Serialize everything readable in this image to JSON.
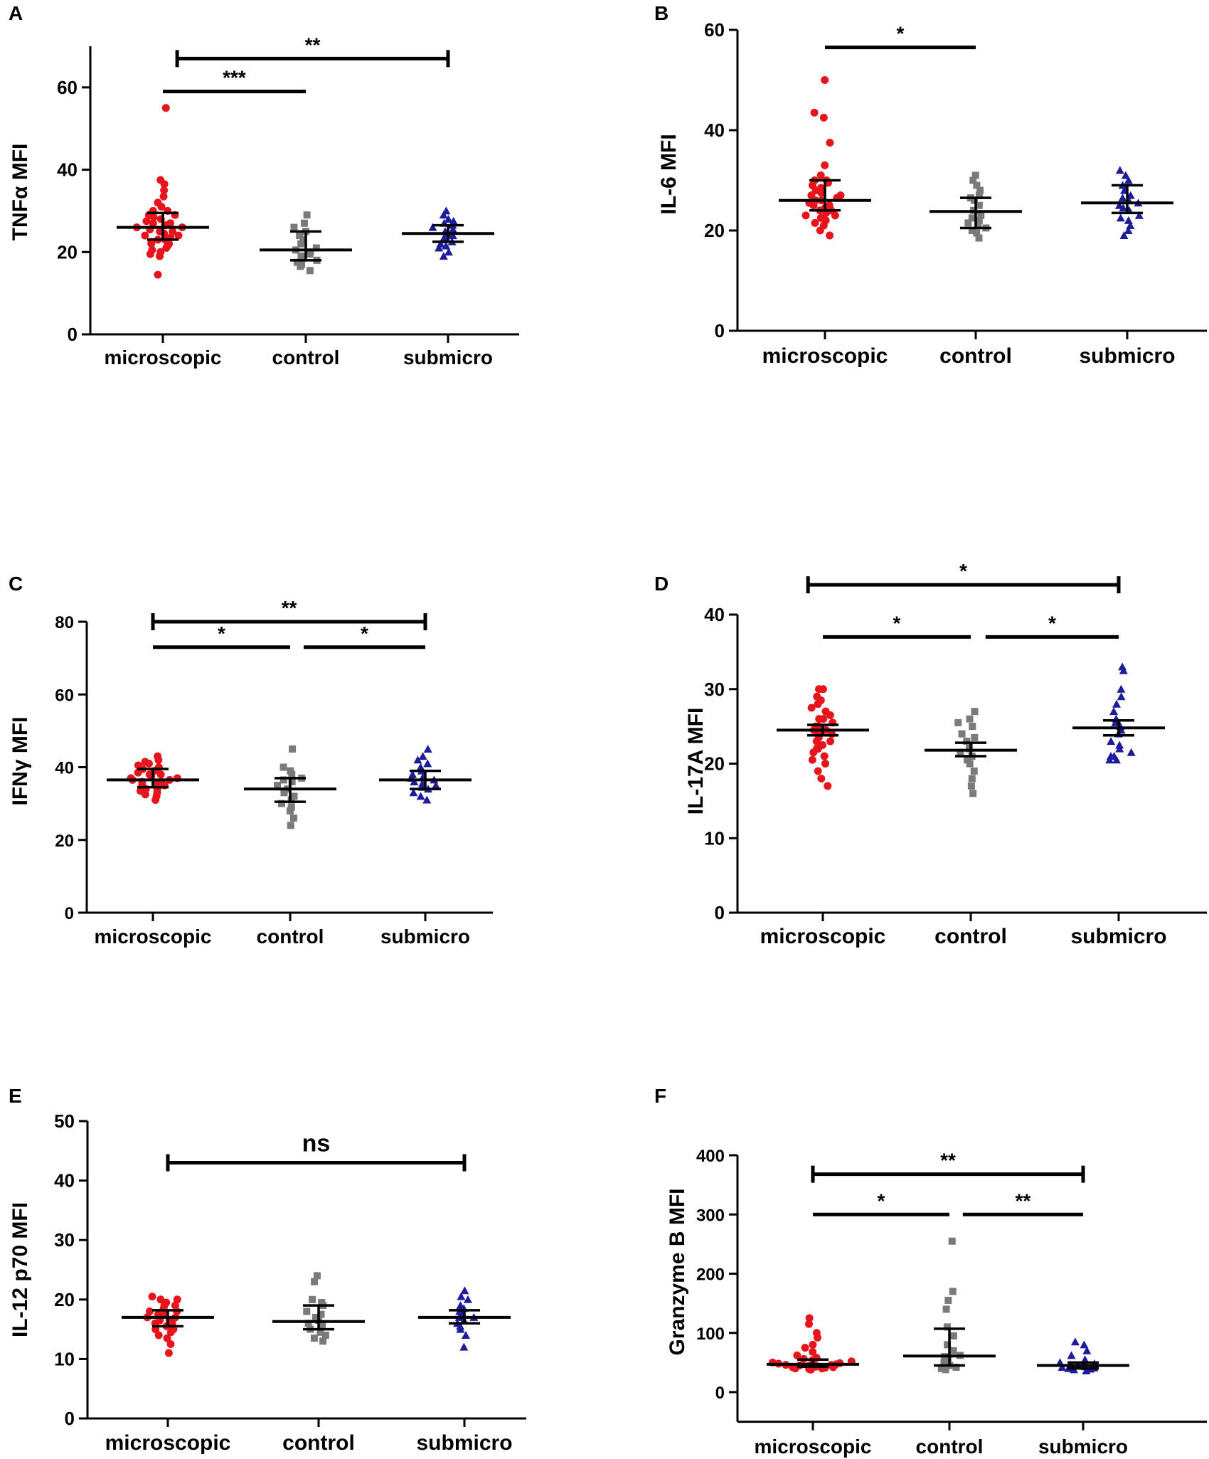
{
  "colors": {
    "microscopic": "#e8141c",
    "control": "#7a7a7a",
    "submicro": "#1c1c9c",
    "axis": "#000000"
  },
  "chart_data": [
    {
      "panel": "A",
      "type": "scatter",
      "ylabel": "TNFα MFI",
      "ylim": [
        0,
        70
      ],
      "yticks": [
        0,
        20,
        40,
        60
      ],
      "categories": [
        "microscopic",
        "control",
        "submicro"
      ],
      "series": [
        {
          "name": "microscopic",
          "marker": "circle",
          "median": 26,
          "q1": 23,
          "q3": 29.5,
          "values": [
            14.5,
            19,
            19.5,
            20,
            20.5,
            21,
            21.5,
            22,
            22,
            22.5,
            23,
            23,
            23.5,
            24,
            24,
            24.5,
            25,
            25,
            25.5,
            26,
            26,
            26.5,
            27,
            27,
            27.5,
            28,
            28.5,
            29,
            29,
            30,
            30,
            31,
            32,
            33.5,
            35,
            36.5,
            37.5,
            55
          ]
        },
        {
          "name": "control",
          "marker": "square",
          "median": 20.5,
          "q1": 18,
          "q3": 25,
          "values": [
            15.5,
            16.5,
            17,
            17.5,
            18,
            18.5,
            19,
            19.5,
            20,
            20.5,
            21,
            22,
            23,
            24,
            25,
            26,
            27,
            29
          ]
        },
        {
          "name": "submicro",
          "marker": "triangle",
          "median": 24.5,
          "q1": 22.5,
          "q3": 26.5,
          "values": [
            19,
            20,
            21,
            21.5,
            22,
            22.5,
            23,
            23.5,
            24,
            24.5,
            25,
            25.5,
            26,
            26.5,
            27,
            27.5,
            28,
            29,
            30
          ]
        }
      ],
      "significance": [
        {
          "from": 0,
          "to": 1,
          "label": "***",
          "y": 59,
          "caps": false
        },
        {
          "from": 0.1,
          "to": 2,
          "label": "**",
          "y": 67,
          "caps": true
        }
      ]
    },
    {
      "panel": "B",
      "type": "scatter",
      "ylabel": "IL-6 MFI",
      "ylim": [
        0,
        60
      ],
      "yticks": [
        0,
        20,
        40,
        60
      ],
      "categories": [
        "microscopic",
        "control",
        "submicro"
      ],
      "series": [
        {
          "name": "microscopic",
          "marker": "circle",
          "median": 26,
          "q1": 24,
          "q3": 30,
          "values": [
            19,
            20,
            21,
            21.5,
            22,
            22.5,
            23,
            23,
            23.5,
            24,
            24,
            24.5,
            25,
            25,
            25.5,
            26,
            26,
            26.5,
            27,
            27,
            27.5,
            28,
            28.5,
            29,
            29.5,
            30,
            30,
            31,
            33,
            37.5,
            42.5,
            43.5,
            50
          ]
        },
        {
          "name": "control",
          "marker": "square",
          "median": 23.8,
          "q1": 20.5,
          "q3": 26.5,
          "values": [
            18.5,
            19.5,
            20,
            20.5,
            21,
            21.5,
            22,
            22.5,
            23,
            24,
            25,
            26,
            26.5,
            27,
            28,
            29,
            30,
            31
          ]
        },
        {
          "name": "submicro",
          "marker": "triangle",
          "median": 25.5,
          "q1": 23.5,
          "q3": 29,
          "values": [
            19,
            20,
            21,
            22,
            22.5,
            23,
            24,
            24.5,
            25,
            25.5,
            26,
            26.5,
            27,
            28,
            29,
            30,
            31,
            32
          ]
        }
      ],
      "significance": [
        {
          "from": 0,
          "to": 1,
          "label": "*",
          "y": 56.5,
          "caps": false
        }
      ]
    },
    {
      "panel": "C",
      "type": "scatter",
      "ylabel": "IFNγ MFI",
      "ylim": [
        0,
        80
      ],
      "yticks": [
        0,
        20,
        40,
        60,
        80
      ],
      "categories": [
        "microscopic",
        "control",
        "submicro"
      ],
      "series": [
        {
          "name": "microscopic",
          "marker": "circle",
          "median": 36.5,
          "q1": 34.5,
          "q3": 39.5,
          "values": [
            31,
            32,
            32.5,
            33,
            33.5,
            34,
            34,
            34.5,
            35,
            35,
            35.5,
            36,
            36,
            36.5,
            36.5,
            37,
            37,
            37.5,
            38,
            38,
            38.5,
            39,
            39.5,
            40,
            40.5,
            41,
            41.5,
            42,
            43
          ]
        },
        {
          "name": "control",
          "marker": "square",
          "median": 34,
          "q1": 30.5,
          "q3": 37,
          "values": [
            24,
            26,
            28,
            29,
            30,
            31,
            32,
            33,
            34,
            35,
            36,
            36.5,
            37,
            38,
            39,
            40,
            45
          ]
        },
        {
          "name": "submicro",
          "marker": "triangle",
          "median": 36.5,
          "q1": 34,
          "q3": 39,
          "values": [
            31,
            32,
            33,
            34,
            34.5,
            35,
            35.5,
            36,
            36.5,
            37,
            37.5,
            38,
            39,
            40,
            41,
            42,
            43,
            45
          ]
        }
      ],
      "significance": [
        {
          "from": 0,
          "to": 1,
          "label": "*",
          "y": 73,
          "caps": false
        },
        {
          "from": 1.1,
          "to": 2,
          "label": "*",
          "y": 73,
          "caps": false
        },
        {
          "from": 0,
          "to": 2,
          "label": "**",
          "y": 80,
          "caps": true
        }
      ]
    },
    {
      "panel": "D",
      "type": "scatter",
      "ylabel": "IL-17A MFI",
      "ylim": [
        0,
        40
      ],
      "yticks": [
        0,
        10,
        20,
        30,
        40
      ],
      "categories": [
        "microscopic",
        "control",
        "submicro"
      ],
      "series": [
        {
          "name": "microscopic",
          "marker": "circle",
          "median": 24.5,
          "q1": 23.8,
          "q3": 25.2,
          "values": [
            17,
            18,
            19,
            20,
            20.5,
            21,
            21.5,
            22,
            22,
            22.5,
            23,
            23,
            23.5,
            24,
            24,
            24.5,
            24.5,
            25,
            25,
            25.5,
            26,
            26,
            26.5,
            27,
            27.5,
            28,
            28.5,
            29,
            30,
            30
          ]
        },
        {
          "name": "control",
          "marker": "square",
          "median": 21.8,
          "q1": 21,
          "q3": 22.8,
          "values": [
            16,
            17,
            18,
            19,
            20,
            20.5,
            21,
            21.5,
            22,
            22.5,
            23,
            23.5,
            24,
            25,
            25.5,
            26,
            27
          ]
        },
        {
          "name": "submicro",
          "marker": "triangle",
          "median": 24.8,
          "q1": 23.8,
          "q3": 25.8,
          "values": [
            20.5,
            20.5,
            21,
            21,
            21.5,
            22,
            22.5,
            23,
            24,
            24.5,
            25,
            25.5,
            26,
            27,
            28,
            29,
            30,
            32.5,
            33
          ]
        }
      ],
      "significance": [
        {
          "from": 0,
          "to": 1,
          "label": "*",
          "y": 37,
          "caps": false
        },
        {
          "from": 1.1,
          "to": 2,
          "label": "*",
          "y": 37,
          "caps": false
        },
        {
          "from": -0.1,
          "to": 2,
          "label": "*",
          "y": 44,
          "caps": true
        }
      ]
    },
    {
      "panel": "E",
      "type": "scatter",
      "ylabel": "IL-12 p70 MFI",
      "ylim": [
        0,
        50
      ],
      "yticks": [
        0,
        10,
        20,
        30,
        40,
        50
      ],
      "categories": [
        "microscopic",
        "control",
        "submicro"
      ],
      "series": [
        {
          "name": "microscopic",
          "marker": "circle",
          "median": 17,
          "q1": 15.5,
          "q3": 18.2,
          "values": [
            11,
            12.5,
            13.5,
            14,
            14.5,
            15,
            15,
            15.5,
            16,
            16,
            16.5,
            16.5,
            17,
            17,
            17.5,
            17.5,
            18,
            18,
            18.5,
            19,
            19,
            19.5,
            20,
            20,
            20.5
          ]
        },
        {
          "name": "control",
          "marker": "square",
          "median": 16.3,
          "q1": 15,
          "q3": 19,
          "values": [
            13,
            13.5,
            14,
            14.5,
            15,
            15.5,
            16,
            16.5,
            17,
            17.5,
            18,
            19,
            19.5,
            20,
            23,
            24
          ]
        },
        {
          "name": "submicro",
          "marker": "triangle",
          "median": 17,
          "q1": 16,
          "q3": 18.2,
          "values": [
            12,
            14,
            15,
            15.5,
            16,
            16.5,
            17,
            17,
            17.5,
            18,
            18.5,
            19,
            20,
            20.5,
            21.5
          ]
        }
      ],
      "significance": [
        {
          "from": 0,
          "to": 2,
          "label": "ns",
          "y": 43,
          "caps": true
        }
      ]
    },
    {
      "panel": "F",
      "type": "scatter",
      "ylabel": "Granzyme B MFI",
      "ylim": [
        -50,
        400
      ],
      "yticks": [
        0,
        100,
        200,
        300,
        400
      ],
      "categories": [
        "microscopic",
        "control",
        "submicro"
      ],
      "series": [
        {
          "name": "microscopic",
          "marker": "circle",
          "median": 47,
          "q1": 43,
          "q3": 55,
          "values": [
            38,
            39,
            40,
            40,
            41,
            42,
            42,
            43,
            44,
            44,
            45,
            46,
            46,
            47,
            48,
            49,
            50,
            52,
            54,
            56,
            58,
            62,
            68,
            75,
            80,
            92,
            100,
            115,
            125
          ]
        },
        {
          "name": "control",
          "marker": "square",
          "median": 61,
          "q1": 45,
          "q3": 107,
          "values": [
            38,
            40,
            42,
            45,
            50,
            55,
            60,
            62,
            70,
            80,
            95,
            110,
            140,
            155,
            170,
            255
          ]
        },
        {
          "name": "submicro",
          "marker": "triangle",
          "median": 45,
          "q1": 40,
          "q3": 50,
          "values": [
            36,
            38,
            39,
            40,
            41,
            42,
            43,
            44,
            45,
            46,
            48,
            50,
            55,
            62,
            70,
            80,
            85
          ]
        }
      ],
      "significance": [
        {
          "from": 0,
          "to": 1,
          "label": "*",
          "y": 300,
          "caps": false
        },
        {
          "from": 1.1,
          "to": 2,
          "label": "**",
          "y": 300,
          "caps": false
        },
        {
          "from": 0,
          "to": 2,
          "label": "**",
          "y": 368,
          "caps": true
        }
      ]
    }
  ]
}
